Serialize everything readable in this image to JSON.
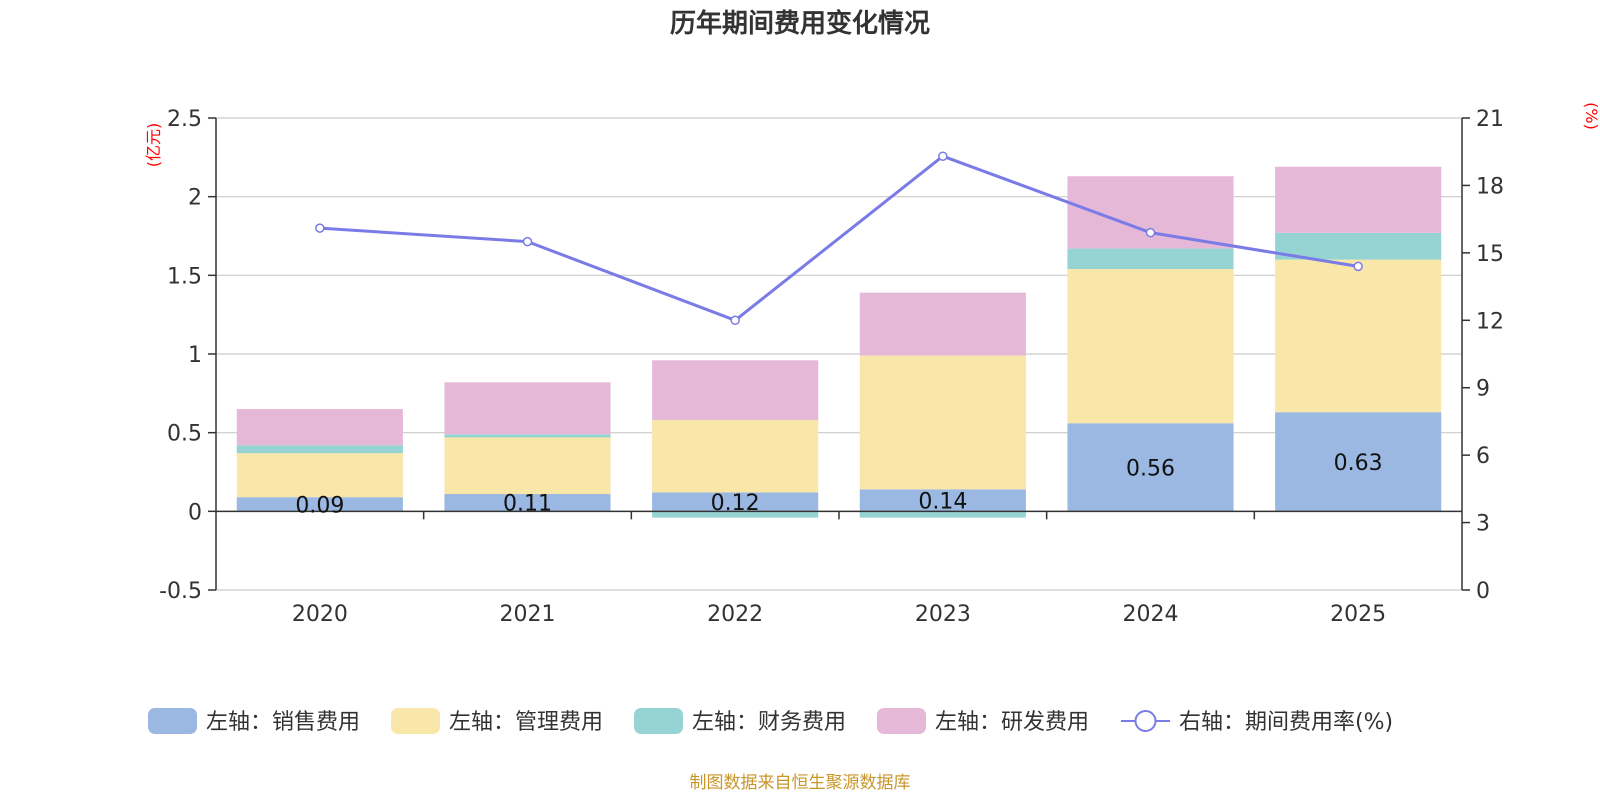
{
  "chart_data": {
    "type": "bar",
    "title": "历年期间费用变化情况",
    "categories": [
      "2020",
      "2021",
      "2022",
      "2023",
      "2024",
      "2025"
    ],
    "left_axis": {
      "unit_label": "(亿元)",
      "range": [
        -0.5,
        2.5
      ],
      "ticks": [
        "-0.5",
        "0",
        "0.5",
        "1",
        "1.5",
        "2",
        "2.5"
      ],
      "tick_values": [
        -0.5,
        0,
        0.5,
        1,
        1.5,
        2,
        2.5
      ]
    },
    "right_axis": {
      "unit_label": "(%)",
      "range": [
        0,
        21
      ],
      "ticks": [
        "0",
        "3",
        "6",
        "9",
        "12",
        "15",
        "18",
        "21"
      ],
      "tick_values": [
        0,
        3,
        6,
        9,
        12,
        15,
        18,
        21
      ]
    },
    "series": [
      {
        "name": "左轴：销售费用",
        "color": "#9bb8e2",
        "values": [
          0.09,
          0.11,
          0.12,
          0.14,
          0.56,
          0.63
        ]
      },
      {
        "name": "左轴：管理费用",
        "color": "#f8e7a8",
        "values": [
          0.28,
          0.36,
          0.46,
          0.85,
          0.98,
          0.97
        ]
      },
      {
        "name": "左轴：财务费用",
        "color": "#96d4d4",
        "values": [
          0.05,
          0.02,
          -0.04,
          -0.04,
          0.13,
          0.17
        ]
      },
      {
        "name": "左轴：研发费用",
        "color": "#e6b8d8",
        "values": [
          0.23,
          0.33,
          0.38,
          0.4,
          0.46,
          0.42
        ]
      }
    ],
    "bar_labels": [
      "0.09",
      "0.11",
      "0.12",
      "0.14",
      "0.56",
      "0.63"
    ],
    "line_series": {
      "name": "右轴：期间费用率(%)",
      "color": "#7b7be8",
      "values": [
        16.1,
        15.5,
        12.0,
        19.3,
        15.9,
        14.4
      ]
    },
    "footer": "制图数据来自恒生聚源数据库"
  },
  "colors": {
    "axis_unit": "#ff0000",
    "footer": "#c9962a",
    "grid": "#cccccc",
    "axis": "#333333"
  }
}
